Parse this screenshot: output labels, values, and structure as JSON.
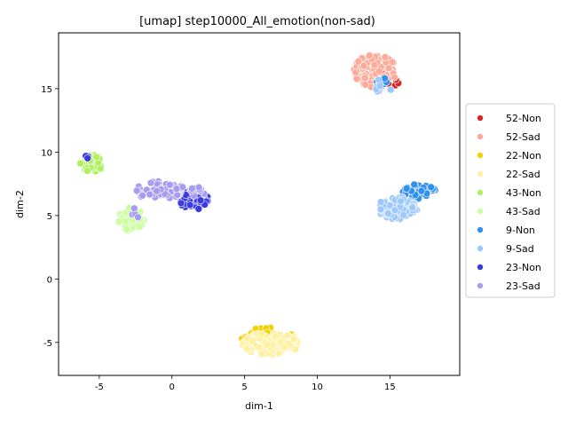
{
  "chart_data": {
    "type": "scatter",
    "title": "[umap] step10000_All_emotion(non-sad)",
    "xlabel": "dim-1",
    "ylabel": "dim-2",
    "xlim": [
      -7.8,
      19.8
    ],
    "ylim": [
      -7.6,
      19.4
    ],
    "xticks": [
      "-5",
      "0",
      "5",
      "10",
      "15"
    ],
    "xtick_values": [
      -5,
      0,
      5,
      10,
      15
    ],
    "yticks": [
      "-5",
      "0",
      "5",
      "10",
      "15"
    ],
    "ytick_values": [
      -5,
      0,
      5,
      10,
      15
    ],
    "grid": false,
    "legend_position": "right-outside",
    "series": [
      {
        "name": "52-Non",
        "color": "#d62728",
        "clusters": [
          {
            "cx": 14.6,
            "cy": 15.8,
            "rx": 1.2,
            "ry": 0.8,
            "n": 25
          }
        ]
      },
      {
        "name": "52-Sad",
        "color": "#ffaa99",
        "clusters": [
          {
            "cx": 14.0,
            "cy": 16.4,
            "rx": 1.5,
            "ry": 1.3,
            "n": 90
          }
        ]
      },
      {
        "name": "22-Non",
        "color": "#f5d000",
        "clusters": [
          {
            "cx": 6.5,
            "cy": -4.6,
            "rx": 1.8,
            "ry": 0.8,
            "n": 35
          }
        ]
      },
      {
        "name": "22-Sad",
        "color": "#fff0a0",
        "clusters": [
          {
            "cx": 6.8,
            "cy": -5.1,
            "rx": 2.0,
            "ry": 0.9,
            "n": 110
          }
        ]
      },
      {
        "name": "43-Non",
        "color": "#b0f060",
        "clusters": [
          {
            "cx": -5.5,
            "cy": 9.1,
            "rx": 0.8,
            "ry": 0.7,
            "n": 35
          }
        ]
      },
      {
        "name": "43-Sad",
        "color": "#ccffa0",
        "clusters": [
          {
            "cx": -2.8,
            "cy": 4.7,
            "rx": 0.9,
            "ry": 1.0,
            "n": 60
          }
        ]
      },
      {
        "name": "9-Non",
        "color": "#3090f0",
        "clusters": [
          {
            "cx": 17.0,
            "cy": 6.9,
            "rx": 1.2,
            "ry": 0.6,
            "n": 50
          },
          {
            "cx": 14.4,
            "cy": 15.6,
            "rx": 0.6,
            "ry": 0.4,
            "n": 4
          }
        ]
      },
      {
        "name": "9-Sad",
        "color": "#9cc8ff",
        "clusters": [
          {
            "cx": 15.5,
            "cy": 5.6,
            "rx": 1.4,
            "ry": 0.9,
            "n": 80
          },
          {
            "cx": 14.5,
            "cy": 15.2,
            "rx": 0.7,
            "ry": 0.6,
            "n": 8
          }
        ]
      },
      {
        "name": "23-Non",
        "color": "#3a3ae0",
        "clusters": [
          {
            "cx": 1.5,
            "cy": 6.3,
            "rx": 1.0,
            "ry": 0.9,
            "n": 70
          },
          {
            "cx": -6.1,
            "cy": 9.6,
            "rx": 0.5,
            "ry": 0.2,
            "n": 3
          }
        ]
      },
      {
        "name": "23-Sad",
        "color": "#a89cf0",
        "clusters": [
          {
            "cx": -0.9,
            "cy": 7.0,
            "rx": 1.8,
            "ry": 0.7,
            "n": 60
          },
          {
            "cx": 1.7,
            "cy": 6.9,
            "rx": 0.6,
            "ry": 0.5,
            "n": 10
          },
          {
            "cx": -2.6,
            "cy": 5.2,
            "rx": 0.5,
            "ry": 0.4,
            "n": 4
          }
        ]
      }
    ]
  }
}
